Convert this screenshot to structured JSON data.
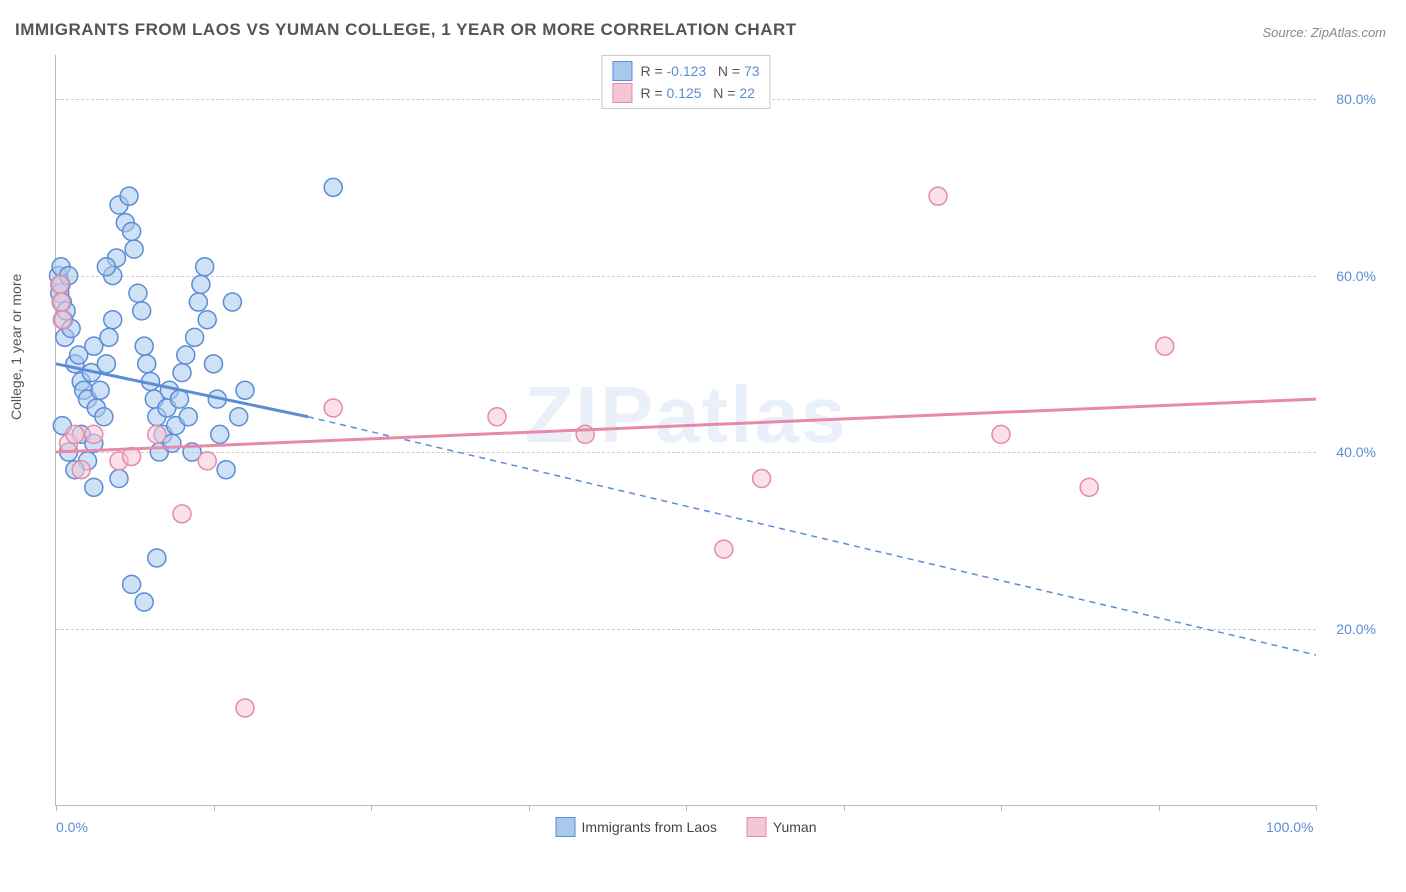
{
  "title": "IMMIGRANTS FROM LAOS VS YUMAN COLLEGE, 1 YEAR OR MORE CORRELATION CHART",
  "source": "Source: ZipAtlas.com",
  "watermark": "ZIPatlas",
  "ylabel": "College, 1 year or more",
  "chart": {
    "type": "scatter",
    "xlim": [
      0,
      100
    ],
    "ylim": [
      0,
      85
    ],
    "yticks": [
      20,
      40,
      60,
      80
    ],
    "ytick_labels": [
      "20.0%",
      "40.0%",
      "60.0%",
      "80.0%"
    ],
    "xtick_positions": [
      0,
      12.5,
      25,
      37.5,
      50,
      62.5,
      75,
      87.5,
      100
    ],
    "xtick_labels": {
      "0": "0.0%",
      "100": "100.0%"
    },
    "background_color": "#ffffff",
    "grid_color": "#cccccc",
    "marker_radius": 9,
    "marker_opacity": 0.55,
    "series": [
      {
        "name": "Immigrants from Laos",
        "color_fill": "#a8c8ec",
        "color_stroke": "#5b8dd6",
        "r": "-0.123",
        "n": "73",
        "trend_solid": {
          "x1": 0,
          "y1": 50,
          "x2": 20,
          "y2": 44
        },
        "trend_dash": {
          "x1": 20,
          "y1": 44,
          "x2": 100,
          "y2": 17
        },
        "points": [
          [
            0.2,
            60
          ],
          [
            0.3,
            58
          ],
          [
            0.4,
            59
          ],
          [
            0.5,
            57
          ],
          [
            0.6,
            55
          ],
          [
            0.7,
            53
          ],
          [
            0.8,
            56
          ],
          [
            0.4,
            61
          ],
          [
            1,
            60
          ],
          [
            1.2,
            54
          ],
          [
            1.5,
            50
          ],
          [
            1.8,
            51
          ],
          [
            2,
            48
          ],
          [
            2.2,
            47
          ],
          [
            2.5,
            46
          ],
          [
            2.8,
            49
          ],
          [
            3,
            52
          ],
          [
            3.2,
            45
          ],
          [
            3.5,
            47
          ],
          [
            3.8,
            44
          ],
          [
            4,
            50
          ],
          [
            4.2,
            53
          ],
          [
            4.5,
            55
          ],
          [
            4.5,
            60
          ],
          [
            4.8,
            62
          ],
          [
            5,
            68
          ],
          [
            5.5,
            66
          ],
          [
            5.8,
            69
          ],
          [
            6,
            65
          ],
          [
            6.2,
            63
          ],
          [
            6.5,
            58
          ],
          [
            6.8,
            56
          ],
          [
            7,
            52
          ],
          [
            7.2,
            50
          ],
          [
            7.5,
            48
          ],
          [
            7.8,
            46
          ],
          [
            8,
            44
          ],
          [
            8.2,
            40
          ],
          [
            8.5,
            42
          ],
          [
            8.8,
            45
          ],
          [
            9,
            47
          ],
          [
            9.2,
            41
          ],
          [
            9.5,
            43
          ],
          [
            9.8,
            46
          ],
          [
            10,
            49
          ],
          [
            10.3,
            51
          ],
          [
            10.5,
            44
          ],
          [
            10.8,
            40
          ],
          [
            11,
            53
          ],
          [
            11.3,
            57
          ],
          [
            11.5,
            59
          ],
          [
            11.8,
            61
          ],
          [
            12,
            55
          ],
          [
            12.5,
            50
          ],
          [
            12.8,
            46
          ],
          [
            13,
            42
          ],
          [
            13.5,
            38
          ],
          [
            14,
            57
          ],
          [
            14.5,
            44
          ],
          [
            15,
            47
          ],
          [
            3,
            36
          ],
          [
            5,
            37
          ],
          [
            6,
            25
          ],
          [
            7,
            23
          ],
          [
            2,
            42
          ],
          [
            2.5,
            39
          ],
          [
            3,
            41
          ],
          [
            0.5,
            43
          ],
          [
            1,
            40
          ],
          [
            1.5,
            38
          ],
          [
            22,
            70
          ],
          [
            8,
            28
          ],
          [
            4,
            61
          ]
        ]
      },
      {
        "name": "Yuman",
        "color_fill": "#f5c6d5",
        "color_stroke": "#e68aa8",
        "r": "0.125",
        "n": "22",
        "trend_solid": {
          "x1": 0,
          "y1": 40,
          "x2": 100,
          "y2": 46
        },
        "trend_dash": null,
        "points": [
          [
            0.3,
            59
          ],
          [
            0.4,
            57
          ],
          [
            0.5,
            55
          ],
          [
            1,
            41
          ],
          [
            1.5,
            42
          ],
          [
            2,
            38
          ],
          [
            3,
            42
          ],
          [
            5,
            39
          ],
          [
            6,
            39.5
          ],
          [
            8,
            42
          ],
          [
            10,
            33
          ],
          [
            12,
            39
          ],
          [
            15,
            11
          ],
          [
            22,
            45
          ],
          [
            35,
            44
          ],
          [
            42,
            42
          ],
          [
            53,
            29
          ],
          [
            56,
            37
          ],
          [
            70,
            69
          ],
          [
            75,
            42
          ],
          [
            82,
            36
          ],
          [
            88,
            52
          ]
        ]
      }
    ]
  },
  "legend_bottom": [
    {
      "label": "Immigrants from Laos",
      "fill": "#a8c8ec",
      "stroke": "#5b8dd6"
    },
    {
      "label": "Yuman",
      "fill": "#f5c6d5",
      "stroke": "#e68aa8"
    }
  ],
  "stat_label_r": "R =",
  "stat_label_n": "N ="
}
